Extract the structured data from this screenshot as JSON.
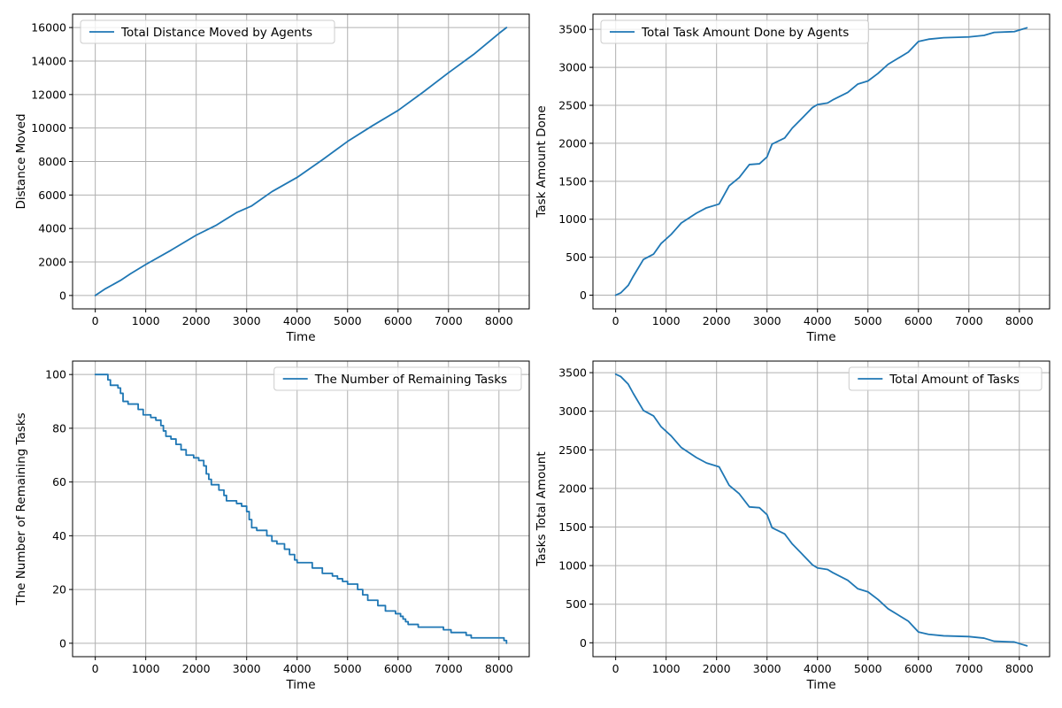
{
  "chart_data": [
    {
      "type": "line",
      "xlabel": "Time",
      "ylabel": "Distance Moved",
      "xlim": [
        -450,
        8600
      ],
      "ylim": [
        -800,
        16800
      ],
      "xticks": [
        0,
        1000,
        2000,
        3000,
        4000,
        5000,
        6000,
        7000,
        8000
      ],
      "yticks": [
        0,
        2000,
        4000,
        6000,
        8000,
        10000,
        12000,
        14000,
        16000
      ],
      "grid": true,
      "legend_position": "top-left",
      "series": [
        {
          "name": "Total Distance Moved by Agents",
          "color": "#1f77b4",
          "x": [
            0,
            200,
            500,
            700,
            1000,
            1500,
            2000,
            2400,
            2800,
            3100,
            3500,
            4000,
            4500,
            5000,
            5500,
            6000,
            6500,
            7000,
            7500,
            8000,
            8150
          ],
          "y": [
            0,
            400,
            900,
            1300,
            1850,
            2700,
            3600,
            4200,
            4950,
            5350,
            6200,
            7050,
            8100,
            9200,
            10150,
            11050,
            12150,
            13300,
            14400,
            15650,
            16000
          ]
        }
      ]
    },
    {
      "type": "line",
      "xlabel": "Time",
      "ylabel": "Task Amount Done",
      "xlim": [
        -450,
        8600
      ],
      "ylim": [
        -180,
        3700
      ],
      "xticks": [
        0,
        1000,
        2000,
        3000,
        4000,
        5000,
        6000,
        7000,
        8000
      ],
      "yticks": [
        0,
        500,
        1000,
        1500,
        2000,
        2500,
        3000,
        3500
      ],
      "grid": true,
      "legend_position": "top-left",
      "series": [
        {
          "name": "Total Task Amount Done by Agents",
          "color": "#1f77b4",
          "x": [
            0,
            100,
            250,
            350,
            550,
            750,
            900,
            1100,
            1300,
            1600,
            1800,
            2050,
            2250,
            2450,
            2650,
            2850,
            3000,
            3100,
            3350,
            3500,
            3650,
            3900,
            4000,
            4200,
            4300,
            4600,
            4800,
            5000,
            5200,
            5400,
            5600,
            5800,
            6000,
            6200,
            6500,
            7000,
            7300,
            7500,
            7900,
            8050,
            8150
          ],
          "y": [
            0,
            30,
            130,
            250,
            470,
            540,
            680,
            800,
            950,
            1080,
            1150,
            1200,
            1440,
            1550,
            1720,
            1730,
            1820,
            1990,
            2070,
            2200,
            2300,
            2470,
            2510,
            2530,
            2570,
            2670,
            2780,
            2820,
            2920,
            3040,
            3120,
            3200,
            3340,
            3370,
            3390,
            3400,
            3420,
            3460,
            3470,
            3500,
            3520
          ]
        }
      ]
    },
    {
      "type": "line",
      "xlabel": "Time",
      "ylabel": "The Number of Remaining Tasks",
      "xlim": [
        -450,
        8600
      ],
      "ylim": [
        -5,
        105
      ],
      "xticks": [
        0,
        1000,
        2000,
        3000,
        4000,
        5000,
        6000,
        7000,
        8000
      ],
      "yticks": [
        0,
        20,
        40,
        60,
        80,
        100
      ],
      "grid": true,
      "legend_position": "top-right",
      "step": true,
      "series": [
        {
          "name": "The Number of Remaining Tasks",
          "color": "#1f77b4",
          "x": [
            0,
            250,
            300,
            450,
            500,
            550,
            650,
            850,
            950,
            1100,
            1200,
            1300,
            1350,
            1400,
            1500,
            1600,
            1700,
            1800,
            1950,
            2050,
            2150,
            2200,
            2250,
            2300,
            2350,
            2450,
            2550,
            2600,
            2800,
            2900,
            3000,
            3050,
            3100,
            3200,
            3400,
            3500,
            3600,
            3750,
            3850,
            3950,
            4000,
            4100,
            4300,
            4500,
            4700,
            4800,
            4900,
            5000,
            5200,
            5300,
            5400,
            5600,
            5750,
            5950,
            6050,
            6100,
            6150,
            6200,
            6400,
            6600,
            6900,
            7050,
            7350,
            7450,
            8050,
            8100,
            8150
          ],
          "y": [
            100,
            98,
            96,
            95,
            93,
            90,
            89,
            87,
            85,
            84,
            83,
            81,
            79,
            77,
            76,
            74,
            72,
            70,
            69,
            68,
            66,
            63,
            61,
            59,
            59,
            57,
            55,
            53,
            52,
            51,
            49,
            46,
            43,
            42,
            40,
            38,
            37,
            35,
            33,
            31,
            30,
            30,
            28,
            26,
            25,
            24,
            23,
            22,
            20,
            18,
            16,
            14,
            12,
            11,
            10,
            9,
            8,
            7,
            6,
            6,
            5,
            4,
            3,
            2,
            2,
            1,
            0
          ]
        }
      ]
    },
    {
      "type": "line",
      "xlabel": "Time",
      "ylabel": "Tasks Total Amount",
      "xlim": [
        -450,
        8600
      ],
      "ylim": [
        -180,
        3650
      ],
      "xticks": [
        0,
        1000,
        2000,
        3000,
        4000,
        5000,
        6000,
        7000,
        8000
      ],
      "yticks": [
        0,
        500,
        1000,
        1500,
        2000,
        2500,
        3000,
        3500
      ],
      "grid": true,
      "legend_position": "top-right",
      "series": [
        {
          "name": "Total Amount of Tasks",
          "color": "#1f77b4",
          "x": [
            0,
            100,
            250,
            350,
            550,
            750,
            900,
            1100,
            1300,
            1600,
            1800,
            2050,
            2250,
            2450,
            2650,
            2850,
            3000,
            3100,
            3350,
            3500,
            3650,
            3900,
            4000,
            4200,
            4300,
            4600,
            4800,
            5000,
            5200,
            5400,
            5600,
            5800,
            6000,
            6200,
            6500,
            7000,
            7300,
            7500,
            7900,
            8050,
            8150
          ],
          "y": [
            3480,
            3450,
            3350,
            3230,
            3010,
            2940,
            2800,
            2680,
            2530,
            2400,
            2330,
            2280,
            2040,
            1930,
            1760,
            1750,
            1660,
            1490,
            1410,
            1280,
            1180,
            1010,
            970,
            950,
            910,
            810,
            700,
            660,
            560,
            440,
            360,
            280,
            140,
            110,
            90,
            80,
            60,
            20,
            10,
            -20,
            -40
          ]
        }
      ]
    }
  ]
}
